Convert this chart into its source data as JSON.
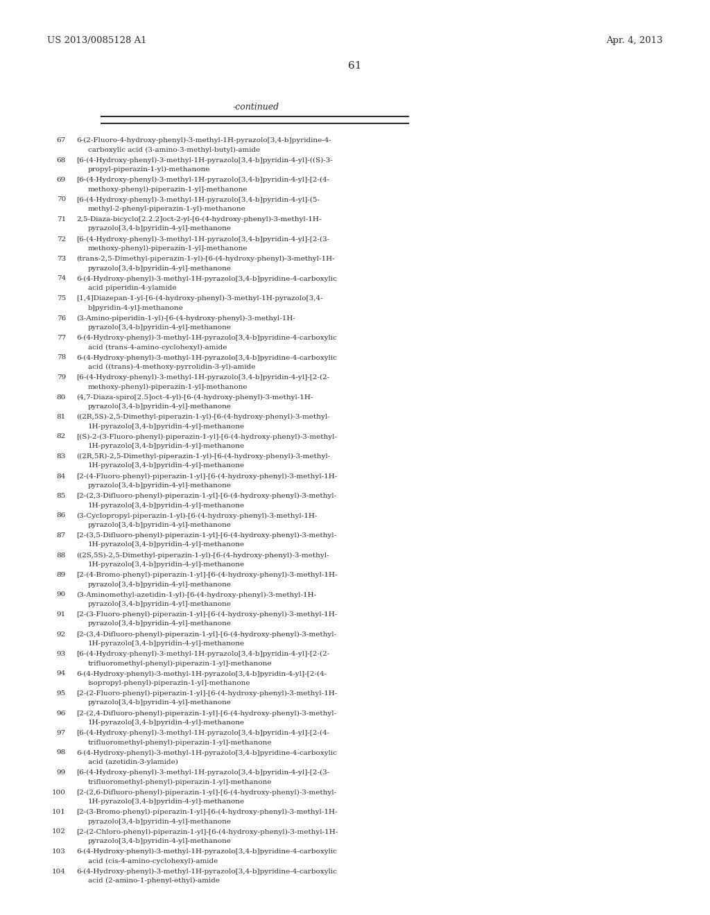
{
  "header_left": "US 2013/0085128 A1",
  "header_right": "Apr. 4, 2013",
  "page_number": "61",
  "continued_label": "-continued",
  "background_color": "#ffffff",
  "text_color": "#2a2a2a",
  "line_color": "#2a2a2a",
  "entries": [
    {
      "num": "67",
      "text": "6-(2-Fluoro-4-hydroxy-phenyl)-3-methyl-1H-pyrazolo[3,4-b]pyridine-4-\ncarboxylic acid (3-amino-3-methyl-butyl)-amide"
    },
    {
      "num": "68",
      "text": "[6-(4-Hydroxy-phenyl)-3-methyl-1H-pyrazolo[3,4-b]pyridin-4-yl]-((S)-3-\npropyl-piperazin-1-yl)-methanone"
    },
    {
      "num": "69",
      "text": "[6-(4-Hydroxy-phenyl)-3-methyl-1H-pyrazolo[3,4-b]pyridin-4-yl]-[2-(4-\nmethoxy-phenyl)-piperazin-1-yl]-methanone"
    },
    {
      "num": "70",
      "text": "[6-(4-Hydroxy-phenyl)-3-methyl-1H-pyrazolo[3,4-b]pyridin-4-yl]-(5-\nmethyl-2-phenyl-piperazin-1-yl)-methanone"
    },
    {
      "num": "71",
      "text": "2,5-Diaza-bicyclo[2.2.2]oct-2-yl-[6-(4-hydroxy-phenyl)-3-methyl-1H-\npyrazolo[3,4-b]pyridin-4-yl]-methanone"
    },
    {
      "num": "72",
      "text": "[6-(4-Hydroxy-phenyl)-3-methyl-1H-pyrazolo[3,4-b]pyridin-4-yl]-[2-(3-\nmethoxy-phenyl)-piperazin-1-yl]-methanone"
    },
    {
      "num": "73",
      "text": "(trans-2,5-Dimethyl-piperazin-1-yl)-[6-(4-hydroxy-phenyl)-3-methyl-1H-\npyrazolo[3,4-b]pyridin-4-yl]-methanone"
    },
    {
      "num": "74",
      "text": "6-(4-Hydroxy-phenyl)-3-methyl-1H-pyrazolo[3,4-b]pyridine-4-carboxylic\nacid piperidin-4-ylamide"
    },
    {
      "num": "75",
      "text": "[1,4]Diazepan-1-yl-[6-(4-hydroxy-phenyl)-3-methyl-1H-pyrazolo[3,4-\nb]pyridin-4-yl]-methanone"
    },
    {
      "num": "76",
      "text": "(3-Amino-piperidin-1-yl)-[6-(4-hydroxy-phenyl)-3-methyl-1H-\npyrazolo[3,4-b]pyridin-4-yl]-methanone"
    },
    {
      "num": "77",
      "text": "6-(4-Hydroxy-phenyl)-3-methyl-1H-pyrazolo[3,4-b]pyridine-4-carboxylic\nacid (trans-4-amino-cyclohexyl)-amide"
    },
    {
      "num": "78",
      "text": "6-(4-Hydroxy-phenyl)-3-methyl-1H-pyrazolo[3,4-b]pyridine-4-carboxylic\nacid ((trans)-4-methoxy-pyrrolidin-3-yl)-amide"
    },
    {
      "num": "79",
      "text": "[6-(4-Hydroxy-phenyl)-3-methyl-1H-pyrazolo[3,4-b]pyridin-4-yl]-[2-(2-\nmethoxy-phenyl)-piperazin-1-yl]-methanone"
    },
    {
      "num": "80",
      "text": "(4,7-Diaza-spiro[2.5]oct-4-yl)-[6-(4-hydroxy-phenyl)-3-methyl-1H-\npyrazolo[3,4-b]pyridin-4-yl]-methanone"
    },
    {
      "num": "81",
      "text": "((2R,5S)-2,5-Dimethyl-piperazin-1-yl)-[6-(4-hydroxy-phenyl)-3-methyl-\n1H-pyrazolo[3,4-b]pyridin-4-yl]-methanone"
    },
    {
      "num": "82",
      "text": "[(S)-2-(3-Fluoro-phenyl)-piperazin-1-yl]-[6-(4-hydroxy-phenyl)-3-methyl-\n1H-pyrazolo[3,4-b]pyridin-4-yl]-methanone"
    },
    {
      "num": "83",
      "text": "((2R,5R)-2,5-Dimethyl-piperazin-1-yl)-[6-(4-hydroxy-phenyl)-3-methyl-\n1H-pyrazolo[3,4-b]pyridin-4-yl]-methanone"
    },
    {
      "num": "84",
      "text": "[2-(4-Fluoro-phenyl)-piperazin-1-yl]-[6-(4-hydroxy-phenyl)-3-methyl-1H-\npyrazolo[3,4-b]pyridin-4-yl]-methanone"
    },
    {
      "num": "85",
      "text": "[2-(2,3-Difluoro-phenyl)-piperazin-1-yl]-[6-(4-hydroxy-phenyl)-3-methyl-\n1H-pyrazolo[3,4-b]pyridin-4-yl]-methanone"
    },
    {
      "num": "86",
      "text": "(3-Cyclopropyl-piperazin-1-yl)-[6-(4-hydroxy-phenyl)-3-methyl-1H-\npyrazolo[3,4-b]pyridin-4-yl]-methanone"
    },
    {
      "num": "87",
      "text": "[2-(3,5-Difluoro-phenyl)-piperazin-1-yl]-[6-(4-hydroxy-phenyl)-3-methyl-\n1H-pyrazolo[3,4-b]pyridin-4-yl]-methanone"
    },
    {
      "num": "88",
      "text": "((2S,5S)-2,5-Dimethyl-piperazin-1-yl)-[6-(4-hydroxy-phenyl)-3-methyl-\n1H-pyrazolo[3,4-b]pyridin-4-yl]-methanone"
    },
    {
      "num": "89",
      "text": "[2-(4-Bromo-phenyl)-piperazin-1-yl]-[6-(4-hydroxy-phenyl)-3-methyl-1H-\npyrazolo[3,4-b]pyridin-4-yl]-methanone"
    },
    {
      "num": "90",
      "text": "(3-Aminomethyl-azetidin-1-yl)-[6-(4-hydroxy-phenyl)-3-methyl-1H-\npyrazolo[3,4-b]pyridin-4-yl]-methanone"
    },
    {
      "num": "91",
      "text": "[2-(3-Fluoro-phenyl)-piperazin-1-yl]-[6-(4-hydroxy-phenyl)-3-methyl-1H-\npyrazolo[3,4-b]pyridin-4-yl]-methanone"
    },
    {
      "num": "92",
      "text": "[2-(3,4-Difluoro-phenyl)-piperazin-1-yl]-[6-(4-hydroxy-phenyl)-3-methyl-\n1H-pyrazolo[3,4-b]pyridin-4-yl]-methanone"
    },
    {
      "num": "93",
      "text": "[6-(4-Hydroxy-phenyl)-3-methyl-1H-pyrazolo[3,4-b]pyridin-4-yl]-[2-(2-\ntrifluoromethyl-phenyl)-piperazin-1-yl]-methanone"
    },
    {
      "num": "94",
      "text": "6-(4-Hydroxy-phenyl)-3-methyl-1H-pyrazolo[3,4-b]pyridin-4-yl]-[2-(4-\nisopropyl-phenyl)-piperazin-1-yl]-methanone"
    },
    {
      "num": "95",
      "text": "[2-(2-Fluoro-phenyl)-piperazin-1-yl]-[6-(4-hydroxy-phenyl)-3-methyl-1H-\npyrazolo[3,4-b]pyridin-4-yl]-methanone"
    },
    {
      "num": "96",
      "text": "[2-(2,4-Difluoro-phenyl)-piperazin-1-yl]-[6-(4-hydroxy-phenyl)-3-methyl-\n1H-pyrazolo[3,4-b]pyridin-4-yl]-methanone"
    },
    {
      "num": "97",
      "text": "[6-(4-Hydroxy-phenyl)-3-methyl-1H-pyrazolo[3,4-b]pyridin-4-yl]-[2-(4-\ntrifluoromethyl-phenyl)-piperazin-1-yl]-methanone"
    },
    {
      "num": "98",
      "text": "6-(4-Hydroxy-phenyl)-3-methyl-1H-pyrazolo[3,4-b]pyridine-4-carboxylic\nacid (azetidin-3-ylamide)"
    },
    {
      "num": "99",
      "text": "[6-(4-Hydroxy-phenyl)-3-methyl-1H-pyrazolo[3,4-b]pyridin-4-yl]-[2-(3-\ntrifluoromethyl-phenyl)-piperazin-1-yl]-methanone"
    },
    {
      "num": "100",
      "text": "[2-(2,6-Difluoro-phenyl)-piperazin-1-yl]-[6-(4-hydroxy-phenyl)-3-methyl-\n1H-pyrazolo[3,4-b]pyridin-4-yl]-methanone"
    },
    {
      "num": "101",
      "text": "[2-(3-Bromo-phenyl)-piperazin-1-yl]-[6-(4-hydroxy-phenyl)-3-methyl-1H-\npyrazolo[3,4-b]pyridin-4-yl]-methanone"
    },
    {
      "num": "102",
      "text": "[2-(2-Chloro-phenyl)-piperazin-1-yl]-[6-(4-hydroxy-phenyl)-3-methyl-1H-\npyrazolo[3,4-b]pyridin-4-yl]-methanone"
    },
    {
      "num": "103",
      "text": "6-(4-Hydroxy-phenyl)-3-methyl-1H-pyrazolo[3,4-b]pyridine-4-carboxylic\nacid (cis-4-amino-cyclohexyl)-amide"
    },
    {
      "num": "104",
      "text": "6-(4-Hydroxy-phenyl)-3-methyl-1H-pyrazolo[3,4-b]pyridine-4-carboxylic\nacid (2-amino-1-phenyl-ethyl)-amide"
    }
  ],
  "header_fontsize": 9.5,
  "pagenum_fontsize": 11,
  "continued_fontsize": 9,
  "entry_fontsize": 7.5,
  "fig_width": 10.24,
  "fig_height": 13.2,
  "dpi": 100
}
